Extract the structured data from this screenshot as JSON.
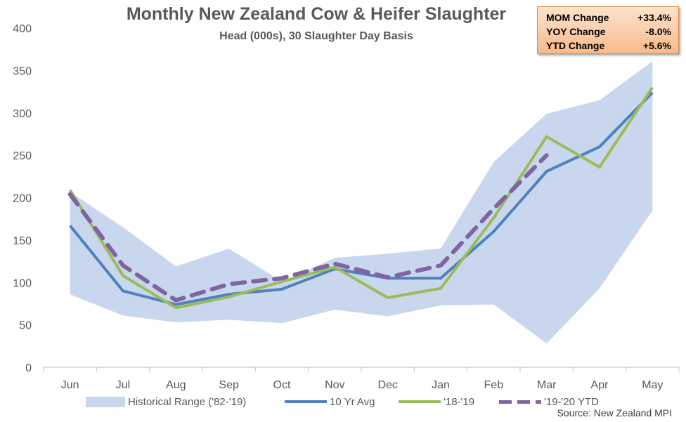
{
  "title": "Monthly New Zealand Cow & Heifer Slaughter",
  "subtitle": "Head (000s), 30 Slaughter Day Basis",
  "source": "Source: New Zealand MPI",
  "stats": [
    {
      "label": "MOM Change",
      "value": "+33.4%"
    },
    {
      "label": "YOY Change",
      "value": "-8.0%"
    },
    {
      "label": "YTD Change",
      "value": "+5.6%"
    }
  ],
  "colors": {
    "range": "#c9d7ee",
    "avg": "#4f81bd",
    "prior": "#9bbb59",
    "ytd": "#8064a2",
    "box_top": "#fde3cf",
    "box_bottom": "#f9b98a"
  },
  "chart_data": {
    "type": "line",
    "categories": [
      "Jun",
      "Jul",
      "Aug",
      "Sep",
      "Oct",
      "Nov",
      "Dec",
      "Jan",
      "Feb",
      "Mar",
      "Apr",
      "May"
    ],
    "ylim": [
      0,
      400
    ],
    "yticks": [
      0,
      50,
      100,
      150,
      200,
      250,
      300,
      350,
      400
    ],
    "grid": false,
    "legend_position": "bottom",
    "range": {
      "name": "Historical Range ('82-'19)",
      "low": [
        86,
        61,
        53,
        56,
        52,
        68,
        60,
        73,
        74,
        28,
        93,
        185
      ],
      "high": [
        207,
        165,
        119,
        140,
        101,
        129,
        134,
        140,
        242,
        299,
        315,
        361
      ]
    },
    "series": [
      {
        "name": "10 Yr Avg",
        "style": "solid",
        "values": [
          167,
          90,
          74,
          86,
          92,
          116,
          105,
          105,
          160,
          231,
          260,
          324
        ]
      },
      {
        "name": "'18-'19",
        "style": "solid",
        "values": [
          209,
          108,
          70,
          83,
          101,
          118,
          82,
          93,
          176,
          272,
          236,
          330
        ]
      },
      {
        "name": "'19-'20 YTD",
        "style": "dashed",
        "values": [
          204,
          120,
          79,
          98,
          105,
          122,
          106,
          120,
          187,
          250,
          null,
          null
        ]
      }
    ]
  }
}
